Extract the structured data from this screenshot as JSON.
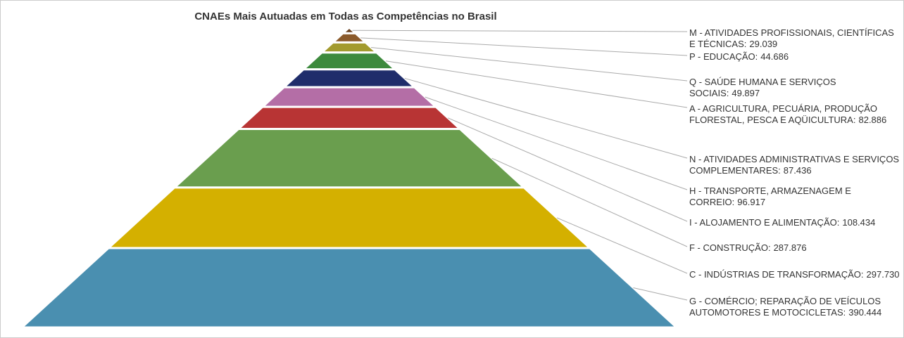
{
  "chart_data": {
    "type": "pyramid",
    "title": "CNAEs Mais Autuadas em Todas as Competências no Brasil",
    "categories": [
      "M - ATIVIDADES PROFISSIONAIS, CIENTÍFICAS E TÉCNICAS:",
      "P - EDUCAÇÃO:",
      "Q - SAÚDE HUMANA E SERVIÇOS SOCIAIS:",
      "A - AGRICULTURA, PECUÁRIA, PRODUÇÃO FLORESTAL, PESCA E AQÜICULTURA:",
      "N - ATIVIDADES ADMINISTRATIVAS E SERVIÇOS COMPLEMENTARES:",
      "H - TRANSPORTE, ARMAZENAGEM E CORREIO:",
      "I - ALOJAMENTO E ALIMENTAÇÃO:",
      "F - CONSTRUÇÃO:",
      "C - INDÚSTRIAS DE TRANSFORMAÇÃO:",
      "G - COMÉRCIO; REPARAÇÃO DE VEÍCULOS AUTOMOTORES E MOTOCICLETAS:"
    ],
    "values": [
      29039,
      44686,
      49897,
      82886,
      87436,
      96917,
      108434,
      287876,
      297730,
      390444
    ],
    "value_labels": [
      "29.039",
      "44.686",
      "49.897",
      "82.886",
      "87.436",
      "96.917",
      "108.434",
      "287.876",
      "297.730",
      "390.444"
    ],
    "colors": [
      "#6b4423",
      "#8b5a2b",
      "#a39b2e",
      "#3d8a3d",
      "#1f2d6b",
      "#b46ea6",
      "#b83434",
      "#6a9e4e",
      "#d4b000",
      "#4a8fb0"
    ]
  }
}
